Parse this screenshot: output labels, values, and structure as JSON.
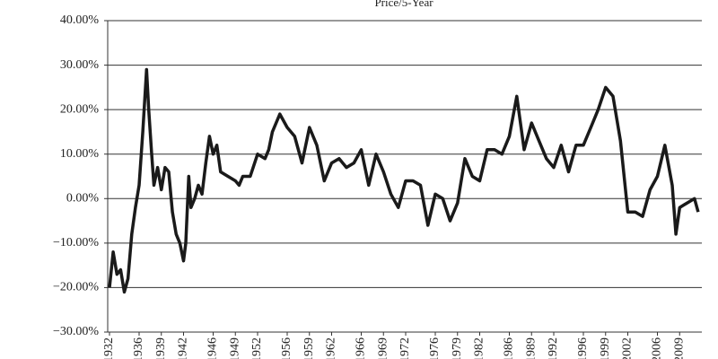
{
  "chart_data": {
    "type": "line",
    "title": "Price/5-Year",
    "color": "#1a1a1a",
    "x": [
      1932,
      1932.5,
      1933,
      1933.5,
      1934,
      1934.5,
      1935,
      1935.5,
      1936,
      1936.5,
      1937,
      1937.3,
      1937.7,
      1938,
      1938.5,
      1939,
      1939.5,
      1940,
      1940.5,
      1941,
      1941.5,
      1942,
      1942.3,
      1942.7,
      1943,
      1943.5,
      1944,
      1944.5,
      1945,
      1945.5,
      1946,
      1946.5,
      1947,
      1948,
      1949,
      1949.5,
      1950,
      1951,
      1952,
      1953,
      1953.5,
      1954,
      1955,
      1956,
      1957,
      1958,
      1959,
      1960,
      1961,
      1962,
      1963,
      1964,
      1965,
      1966,
      1967,
      1968,
      1969,
      1970,
      1971,
      1972,
      1973,
      1974,
      1975,
      1976,
      1977,
      1978,
      1979,
      1980,
      1981,
      1982,
      1983,
      1984,
      1985,
      1986,
      1987,
      1988,
      1989,
      1990,
      1991,
      1992,
      1993,
      1994,
      1995,
      1996,
      1997,
      1998,
      1999,
      2000,
      2001,
      2002,
      2003,
      2004,
      2005,
      2006,
      2007,
      2008,
      2008.5,
      2009,
      2010,
      2011,
      2011.5
    ],
    "values": [
      -20,
      -12,
      -17,
      -16,
      -21,
      -18,
      -8,
      -2,
      3,
      15,
      29,
      20,
      10,
      3,
      7,
      2,
      7,
      6,
      -3,
      -8,
      -10,
      -14,
      -10,
      5,
      -2,
      0,
      3,
      1,
      8,
      14,
      10,
      12,
      6,
      5,
      4,
      3,
      5,
      5,
      10,
      9,
      11,
      15,
      19,
      16,
      14,
      8,
      16,
      12,
      4,
      8,
      9,
      7,
      8,
      11,
      3,
      10,
      6,
      1,
      -2,
      4,
      4,
      3,
      -6,
      1,
      0,
      -5,
      -1,
      9,
      5,
      4,
      11,
      11,
      10,
      14,
      23,
      11,
      17,
      13,
      9,
      7,
      12,
      6,
      12,
      12,
      16,
      20,
      25,
      23,
      13,
      -3,
      -3,
      -4,
      2,
      5,
      12,
      3,
      -8,
      -2,
      -1,
      0,
      -3
    ],
    "xlim": [
      1932,
      2012
    ],
    "xticks": [
      1932,
      1936,
      1939,
      1942,
      1946,
      1949,
      1952,
      1956,
      1959,
      1962,
      1966,
      1969,
      1972,
      1976,
      1979,
      1982,
      1986,
      1989,
      1992,
      1996,
      1999,
      2002,
      2006,
      2009
    ],
    "ylim": [
      -30,
      40
    ],
    "yticks": [
      {
        "value": -30,
        "label": "−30.00%"
      },
      {
        "value": -20,
        "label": "−20.00%"
      },
      {
        "value": -10,
        "label": "−10.00%"
      },
      {
        "value": 0,
        "label": "0.00%"
      },
      {
        "value": 10,
        "label": "10.00%"
      },
      {
        "value": 20,
        "label": "20.00%"
      },
      {
        "value": 30,
        "label": "30.00%"
      },
      {
        "value": 40,
        "label": "40.00%"
      }
    ],
    "grid": true
  }
}
